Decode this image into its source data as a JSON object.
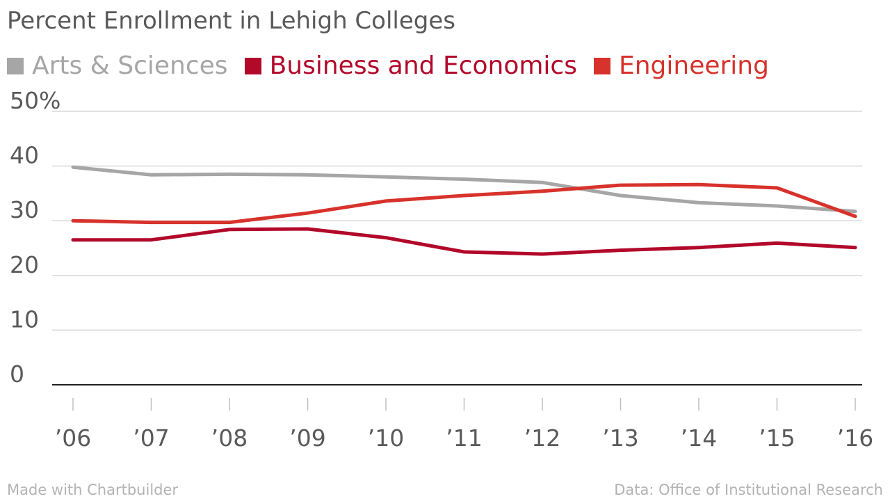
{
  "title": "Percent Enrollment in Lehigh Colleges",
  "footer_left": "Made with Chartbuilder",
  "footer_right": "Data: Office of Institutional Research",
  "chart_data": {
    "type": "line",
    "title": "Percent Enrollment in Lehigh Colleges",
    "xlabel": "",
    "ylabel": "",
    "categories": [
      "’06",
      "’07",
      "’08",
      "’09",
      "’10",
      "’11",
      "’12",
      "’13",
      "’14",
      "’15",
      "’16"
    ],
    "y_ticks": [
      "0",
      "10",
      "20",
      "30",
      "40",
      "50%"
    ],
    "ylim": [
      0,
      50
    ],
    "grid": true,
    "legend_position": "top",
    "series": [
      {
        "name": "Arts & Sciences",
        "color": "#a6a6a6",
        "values": [
          39.8,
          38.4,
          38.5,
          38.4,
          38.0,
          37.6,
          37.0,
          34.6,
          33.3,
          32.7,
          31.7
        ]
      },
      {
        "name": "Business and Economics",
        "color": "#b2082a",
        "values": [
          26.5,
          26.5,
          28.4,
          28.5,
          26.9,
          24.3,
          23.9,
          24.6,
          25.1,
          25.9,
          25.1
        ]
      },
      {
        "name": "Engineering",
        "color": "#d7322b",
        "values": [
          30.0,
          29.7,
          29.7,
          31.4,
          33.6,
          34.6,
          35.4,
          36.5,
          36.6,
          36.0,
          30.8
        ]
      }
    ]
  }
}
